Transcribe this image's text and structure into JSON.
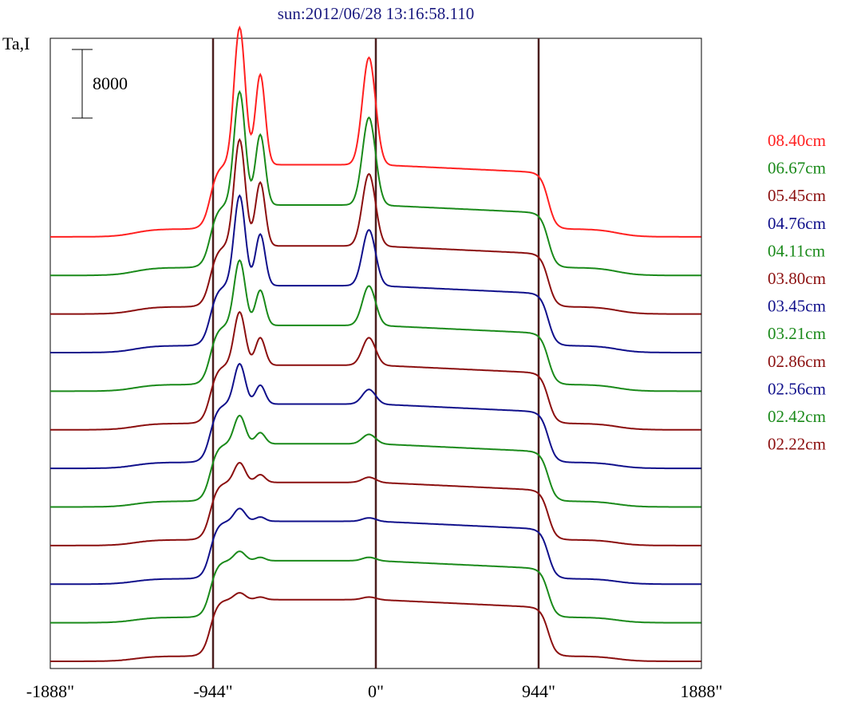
{
  "chart_data": {
    "type": "line",
    "title": "sun:2012/06/28 13:16:58.110",
    "ylabel": "Ta,I",
    "scale_bar_label": "8000",
    "scale_bar_value": 8000,
    "x_ticks": [
      {
        "value": -1888,
        "label": "-1888\""
      },
      {
        "value": -944,
        "label": "-944\""
      },
      {
        "value": 0,
        "label": "0\""
      },
      {
        "value": 944,
        "label": "944\""
      },
      {
        "value": 1888,
        "label": "1888\""
      }
    ],
    "xlim": [
      -1888,
      1888
    ],
    "vertical_lines": [
      -944,
      0,
      944
    ],
    "grid": false,
    "legend_position": "right",
    "series_offset": 4500,
    "series": [
      {
        "name": "08.40cm",
        "color": "#ff2020",
        "peak1": 23500,
        "peak2": 18000,
        "center": 20000,
        "disk": 7500,
        "limb": 2600
      },
      {
        "name": "06.67cm",
        "color": "#1a8a1a",
        "peak1": 20500,
        "peak2": 15500,
        "center": 17500,
        "disk": 7300,
        "limb": 2600
      },
      {
        "name": "05.45cm",
        "color": "#8b0f0f",
        "peak1": 19500,
        "peak2": 14500,
        "center": 15500,
        "disk": 7100,
        "limb": 2400
      },
      {
        "name": "04.76cm",
        "color": "#10108b",
        "peak1": 17500,
        "peak2": 13000,
        "center": 13500,
        "disk": 7000,
        "limb": 2300
      },
      {
        "name": "04.11cm",
        "color": "#1a8a1a",
        "peak1": 14500,
        "peak2": 11000,
        "center": 11500,
        "disk": 6900,
        "limb": 2200
      },
      {
        "name": "03.80cm",
        "color": "#8b0f0f",
        "peak1": 13000,
        "peak2": 10000,
        "center": 10000,
        "disk": 6800,
        "limb": 2100
      },
      {
        "name": "03.45cm",
        "color": "#10108b",
        "peak1": 11500,
        "peak2": 9000,
        "center": 8500,
        "disk": 6800,
        "limb": 2000
      },
      {
        "name": "03.21cm",
        "color": "#1a8a1a",
        "peak1": 10000,
        "peak2": 8000,
        "center": 7800,
        "disk": 6700,
        "limb": 1900
      },
      {
        "name": "02.86cm",
        "color": "#8b0f0f",
        "peak1": 9000,
        "peak2": 7600,
        "center": 7300,
        "disk": 6700,
        "limb": 1900
      },
      {
        "name": "02.56cm",
        "color": "#10108b",
        "peak1": 8200,
        "peak2": 7200,
        "center": 7100,
        "disk": 6700,
        "limb": 1800
      },
      {
        "name": "02.42cm",
        "color": "#1a8a1a",
        "peak1": 7700,
        "peak2": 7000,
        "center": 7000,
        "disk": 6600,
        "limb": 1800
      },
      {
        "name": "02.22cm",
        "color": "#8b0f0f",
        "peak1": 7400,
        "peak2": 6900,
        "center": 6900,
        "disk": 6600,
        "limb": 1700
      }
    ]
  }
}
